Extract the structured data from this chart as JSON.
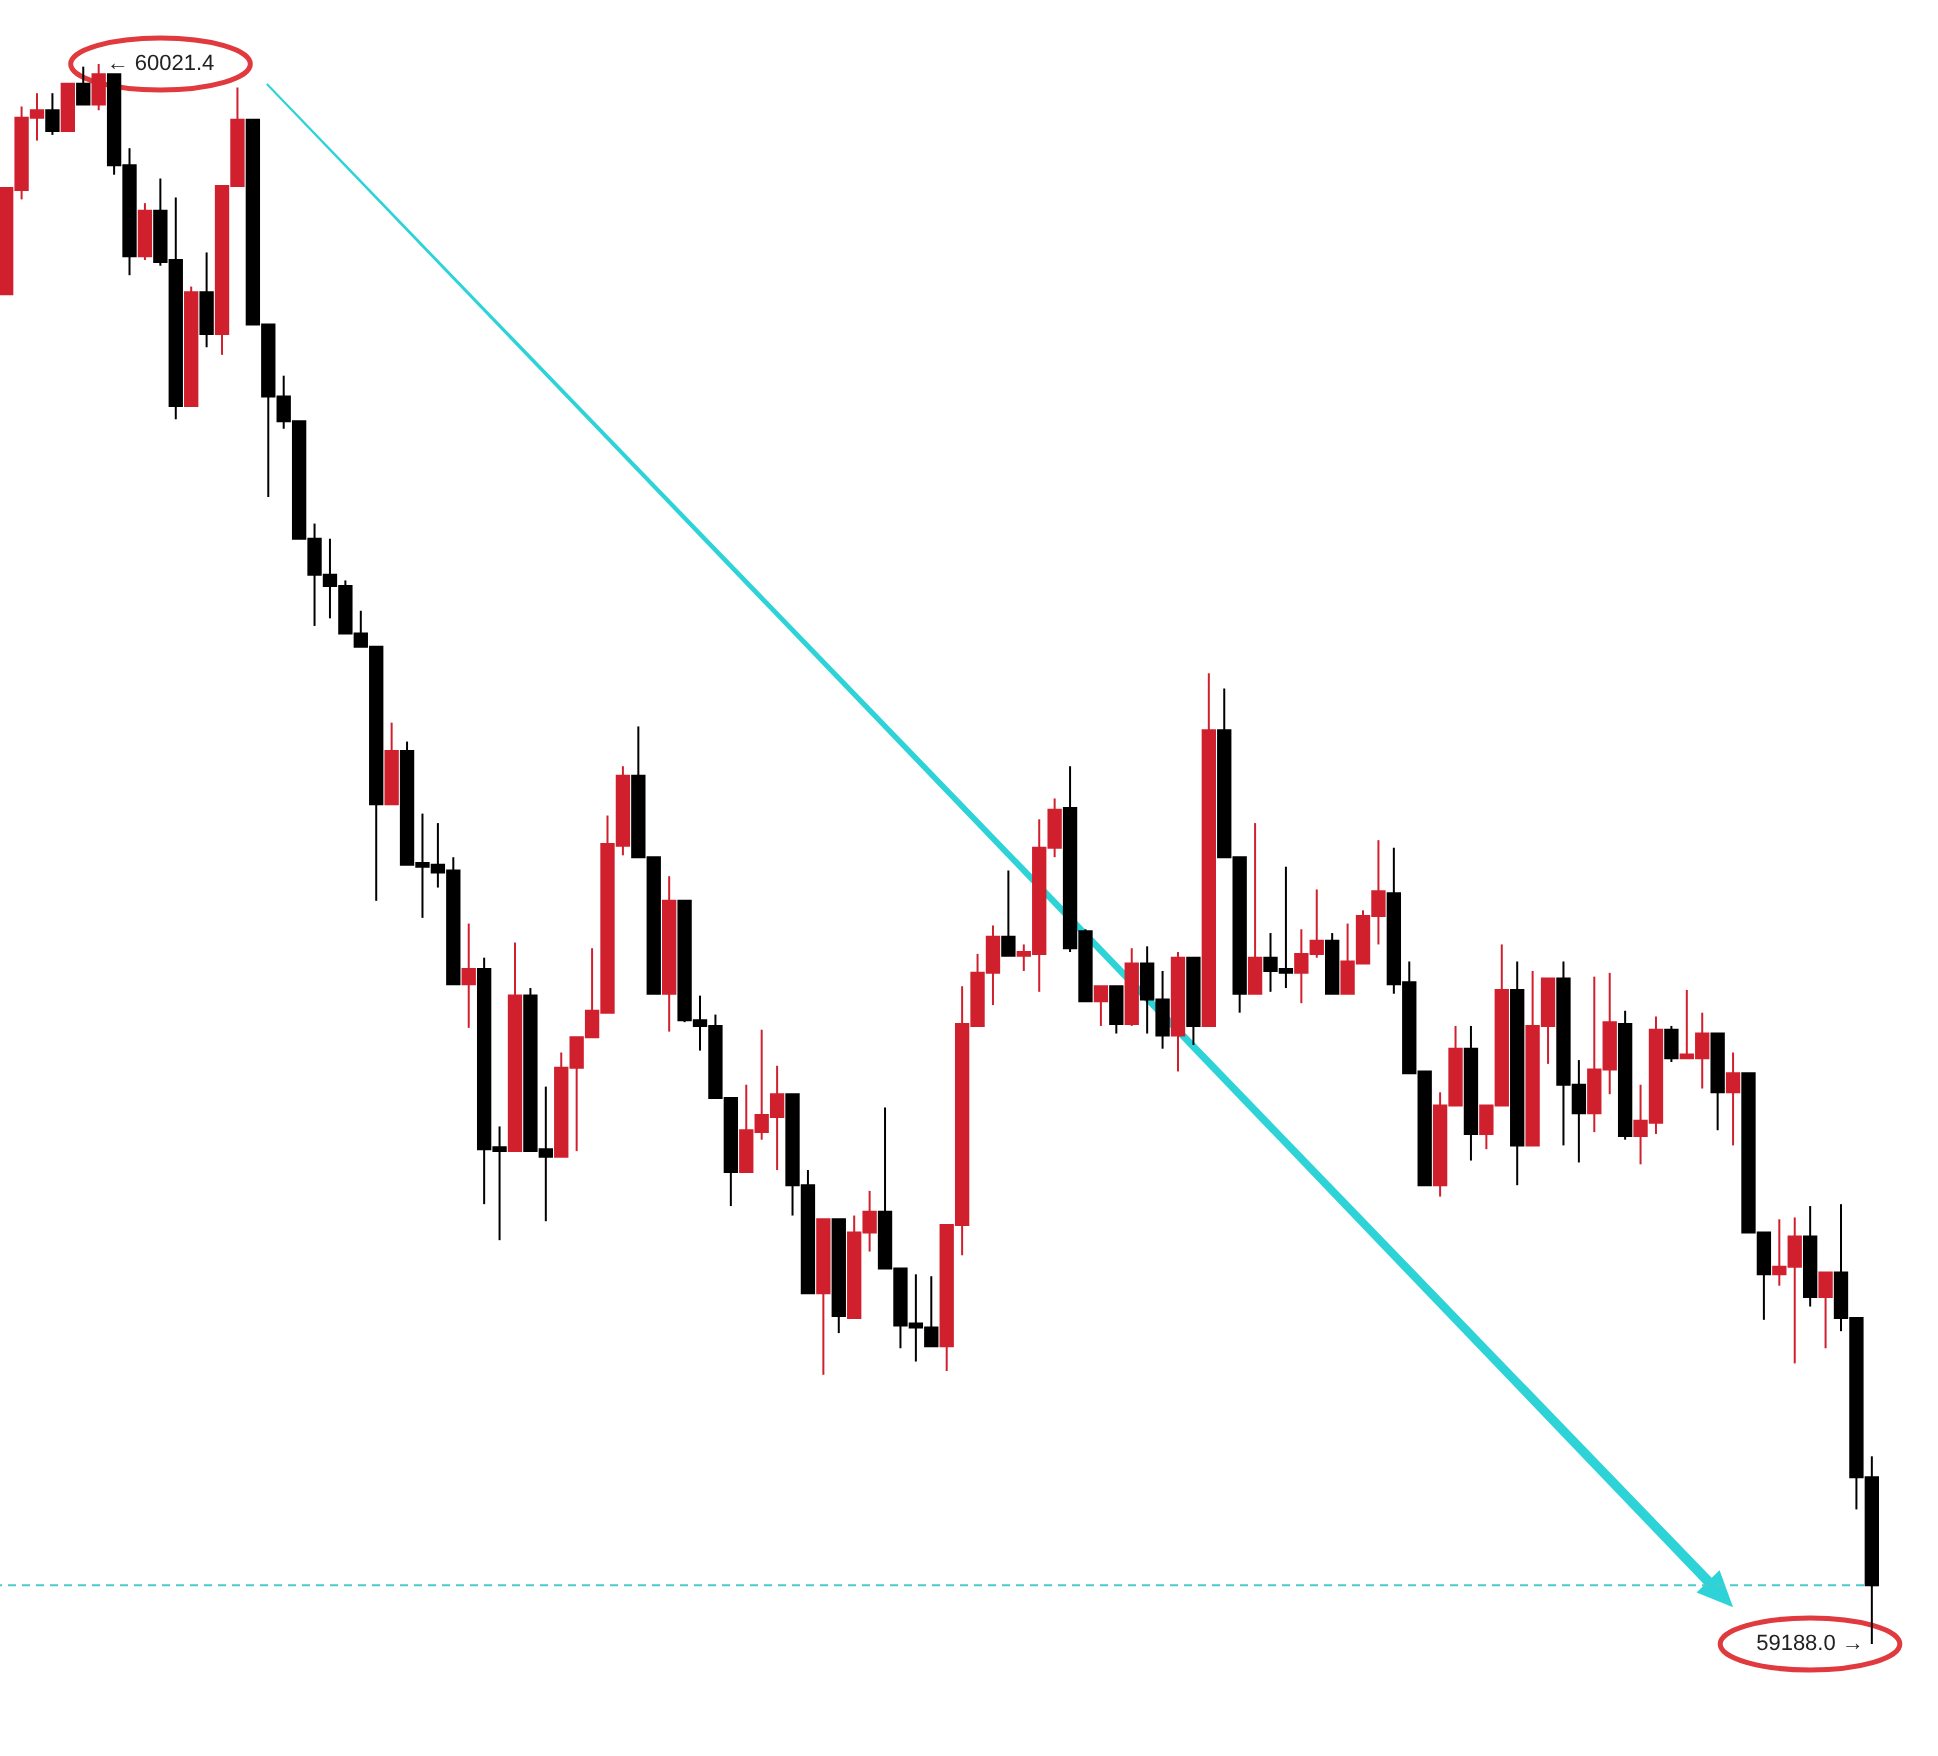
{
  "chart_data": {
    "type": "candlestick",
    "categories": [
      null,
      null,
      null,
      null,
      null,
      null,
      null,
      null,
      null,
      null,
      null,
      null,
      null,
      null,
      null,
      null,
      null,
      null,
      null,
      null,
      null,
      null,
      null,
      null,
      null,
      null,
      null,
      null,
      null,
      null,
      null,
      null,
      null,
      null,
      null,
      null,
      null,
      null,
      null,
      null,
      null,
      null,
      null,
      null,
      null,
      null,
      null,
      null,
      null,
      null,
      null,
      null,
      null,
      null,
      null,
      null,
      null,
      null,
      null,
      null,
      null,
      null,
      null,
      null,
      null,
      null,
      null,
      null,
      null,
      null,
      null,
      null,
      null,
      null,
      null,
      null,
      null,
      null,
      null,
      null,
      null,
      null,
      null,
      null,
      null,
      null,
      null,
      null,
      null,
      null,
      null,
      null,
      null,
      null,
      null,
      null,
      null,
      null,
      null,
      null,
      null,
      null,
      null,
      null,
      null,
      null,
      null,
      null,
      null,
      null,
      null,
      null,
      null,
      null,
      null,
      null,
      null,
      null,
      null,
      null,
      null,
      null
    ],
    "ohlc": [
      [
        59900,
        59956,
        59900,
        59956
      ],
      [
        59955,
        59999,
        59950,
        59993
      ],
      [
        59993,
        60006,
        59981,
        59997
      ],
      [
        59997,
        60006,
        59984,
        59986
      ],
      [
        59986,
        60011,
        59986,
        60011
      ],
      [
        60011,
        60020,
        60000,
        60000
      ],
      [
        60000,
        60021.4,
        59997,
        60016
      ],
      [
        60016,
        60016,
        59963,
        59968
      ],
      [
        59968,
        59977,
        59910,
        59920
      ],
      [
        59920,
        59948,
        59918,
        59944
      ],
      [
        59944,
        59961,
        59915,
        59917
      ],
      [
        59918,
        59951,
        59834,
        59841
      ],
      [
        59841,
        59904,
        59841,
        59901
      ],
      [
        59901,
        59922,
        59872,
        59879
      ],
      [
        59879,
        59957,
        59868,
        59957
      ],
      [
        59957,
        60009,
        59957,
        59992
      ],
      [
        59992,
        59992,
        59884,
        59884
      ],
      [
        59884,
        59884,
        59793,
        59846
      ],
      [
        59846,
        59857,
        59829,
        59833
      ],
      [
        59833,
        59833,
        59771,
        59771
      ],
      [
        59771,
        59779,
        59725,
        59752
      ],
      [
        59752,
        59771,
        59729,
        59746
      ],
      [
        59746,
        59749,
        59721,
        59721
      ],
      [
        59721,
        59733,
        59714,
        59714
      ],
      [
        59714,
        59714,
        59580,
        59631
      ],
      [
        59631,
        59674,
        59631,
        59659
      ],
      [
        59659,
        59664,
        59599,
        59599
      ],
      [
        59600,
        59626,
        59571,
        59598
      ],
      [
        59599,
        59621,
        59587,
        59595
      ],
      [
        59596,
        59603,
        59536,
        59536
      ],
      [
        59536,
        59568,
        59513,
        59544
      ],
      [
        59544,
        59550,
        59420,
        59449
      ],
      [
        59450,
        59461,
        59401,
        59448
      ],
      [
        59448,
        59558,
        59448,
        59530
      ],
      [
        59530,
        59534,
        59448,
        59448
      ],
      [
        59449,
        59482,
        59411,
        59445
      ],
      [
        59445,
        59500,
        59445,
        59492
      ],
      [
        59492,
        59508,
        59448,
        59508
      ],
      [
        59508,
        59555,
        59508,
        59522
      ],
      [
        59521,
        59625,
        59521,
        59610
      ],
      [
        59609,
        59651,
        59604,
        59646
      ],
      [
        59646,
        59672,
        59603,
        59603
      ],
      [
        59603,
        59603,
        59531,
        59531
      ],
      [
        59531,
        59593,
        59511,
        59580
      ],
      [
        59580,
        59580,
        59516,
        59517
      ],
      [
        59517,
        59530,
        59501,
        59514
      ],
      [
        59514,
        59520,
        59476,
        59476
      ],
      [
        59476,
        59476,
        59419,
        59437
      ],
      [
        59437,
        59483,
        59437,
        59459
      ],
      [
        59458,
        59512,
        59454,
        59467
      ],
      [
        59466,
        59493,
        59438,
        59478
      ],
      [
        59478,
        59478,
        59414,
        59430
      ],
      [
        59430,
        59438,
        59373,
        59373
      ],
      [
        59373,
        59412,
        59330,
        59412
      ],
      [
        59412,
        59412,
        59352,
        59361
      ],
      [
        59360,
        59414,
        59360,
        59405
      ],
      [
        59405,
        59427,
        59395,
        59416
      ],
      [
        59416,
        59471,
        59386,
        59386
      ],
      [
        59386,
        59386,
        59344,
        59356
      ],
      [
        59357,
        59383,
        59337,
        59355
      ],
      [
        59355,
        59382,
        59345,
        59345
      ],
      [
        59345,
        59409,
        59332,
        59409
      ],
      [
        59409,
        59535,
        59393,
        59515
      ],
      [
        59514,
        59552,
        59514,
        59542
      ],
      [
        59542,
        59567,
        59525,
        59561
      ],
      [
        59561,
        59596,
        59551,
        59551
      ],
      [
        59551,
        59557,
        59543,
        59553
      ],
      [
        59552,
        59623,
        59532,
        59608
      ],
      [
        59608,
        59634,
        59603,
        59628
      ],
      [
        59629,
        59651,
        59553,
        59555
      ],
      [
        59564,
        59565,
        59527,
        59527
      ],
      [
        59527,
        59535,
        59514,
        59535
      ],
      [
        59535,
        59535,
        59510,
        59515
      ],
      [
        59515,
        59555,
        59514,
        59547
      ],
      [
        59547,
        59556,
        59510,
        59528
      ],
      [
        59528,
        59543,
        59502,
        59509
      ],
      [
        59509,
        59553,
        59490,
        59550
      ],
      [
        59550,
        59550,
        59504,
        59514
      ],
      [
        59514,
        59700,
        59514,
        59670
      ],
      [
        59670,
        59692,
        59603,
        59603
      ],
      [
        59603,
        59603,
        59521,
        59531
      ],
      [
        59531,
        59621,
        59531,
        59550
      ],
      [
        59550,
        59563,
        59532,
        59543
      ],
      [
        59544,
        59598,
        59534,
        59542
      ],
      [
        59542,
        59565,
        59526,
        59552
      ],
      [
        59552,
        59586,
        59550,
        59559
      ],
      [
        59559,
        59563,
        59531,
        59531
      ],
      [
        59531,
        59568,
        59531,
        59548
      ],
      [
        59547,
        59575,
        59547,
        59572
      ],
      [
        59572,
        59612,
        59557,
        59585
      ],
      [
        59584,
        59608,
        59531,
        59536
      ],
      [
        59537,
        59548,
        59489,
        59489
      ],
      [
        59490,
        59490,
        59430,
        59430
      ],
      [
        59430,
        59479,
        59424,
        59472
      ],
      [
        59472,
        59514,
        59472,
        59502
      ],
      [
        59502,
        59514,
        59443,
        59457
      ],
      [
        59457,
        59472,
        59449,
        59472
      ],
      [
        59472,
        59557,
        59472,
        59533
      ],
      [
        59533,
        59548,
        59430,
        59451
      ],
      [
        59451,
        59543,
        59451,
        59514
      ],
      [
        59514,
        59539,
        59494,
        59539
      ],
      [
        59539,
        59548,
        59451,
        59483
      ],
      [
        59483,
        59496,
        59442,
        59468
      ],
      [
        59468,
        59540,
        59458,
        59491
      ],
      [
        59491,
        59542,
        59478,
        59516
      ],
      [
        59515,
        59522,
        59454,
        59456
      ],
      [
        59456,
        59483,
        59441,
        59464
      ],
      [
        59463,
        59519,
        59457,
        59512
      ],
      [
        59512,
        59514,
        59495,
        59497
      ],
      [
        59497,
        59533,
        59497,
        59499
      ],
      [
        59497,
        59521,
        59481,
        59510
      ],
      [
        59510,
        59510,
        59459,
        59479
      ],
      [
        59479,
        59500,
        59451,
        59489
      ],
      [
        59489,
        59489,
        59405,
        59405
      ],
      [
        59405,
        59405,
        59359,
        59383
      ],
      [
        59383,
        59412,
        59377,
        59387
      ],
      [
        59387,
        59413,
        59336,
        59403
      ],
      [
        59403,
        59419,
        59366,
        59371
      ],
      [
        59371,
        59384,
        59344,
        59384
      ],
      [
        59384,
        59420,
        59353,
        59360
      ],
      [
        59360,
        59360,
        59259,
        59276
      ],
      [
        59276,
        59287,
        59188.0,
        59219
      ]
    ],
    "colors": [
      "#d0202e",
      "#d0202e",
      "#d0202e",
      "#000000",
      "#d0202e",
      "#000000",
      "#d0202e",
      "#000000",
      "#000000",
      "#d0202e",
      "#000000",
      "#000000",
      "#d0202e",
      "#000000",
      "#d0202e",
      "#d0202e",
      "#000000",
      "#000000",
      "#000000",
      "#000000",
      "#000000",
      "#000000",
      "#000000",
      "#000000",
      "#000000",
      "#d0202e",
      "#000000",
      "#000000",
      "#000000",
      "#000000",
      "#d0202e",
      "#000000",
      "#000000",
      "#d0202e",
      "#000000",
      "#000000",
      "#d0202e",
      "#d0202e",
      "#d0202e",
      "#d0202e",
      "#d0202e",
      "#000000",
      "#000000",
      "#d0202e",
      "#000000",
      "#000000",
      "#000000",
      "#000000",
      "#d0202e",
      "#d0202e",
      "#d0202e",
      "#000000",
      "#000000",
      "#d0202e",
      "#000000",
      "#d0202e",
      "#d0202e",
      "#000000",
      "#000000",
      "#000000",
      "#000000",
      "#d0202e",
      "#d0202e",
      "#d0202e",
      "#d0202e",
      "#000000",
      "#d0202e",
      "#d0202e",
      "#d0202e",
      "#000000",
      "#000000",
      "#d0202e",
      "#000000",
      "#d0202e",
      "#000000",
      "#000000",
      "#d0202e",
      "#000000",
      "#d0202e",
      "#000000",
      "#000000",
      "#d0202e",
      "#000000",
      "#000000",
      "#d0202e",
      "#d0202e",
      "#000000",
      "#d0202e",
      "#d0202e",
      "#d0202e",
      "#000000",
      "#000000",
      "#000000",
      "#d0202e",
      "#d0202e",
      "#000000",
      "#d0202e",
      "#d0202e",
      "#000000",
      "#d0202e",
      "#d0202e",
      "#000000",
      "#000000",
      "#d0202e",
      "#d0202e",
      "#000000",
      "#d0202e",
      "#d0202e",
      "#000000",
      "#d0202e",
      "#d0202e",
      "#000000",
      "#d0202e",
      "#000000",
      "#000000",
      "#d0202e",
      "#d0202e",
      "#000000",
      "#d0202e",
      "#000000",
      "#000000",
      "#000000"
    ],
    "ref_lines": [
      {
        "axis": "y",
        "value": 59219,
        "color": "#4cc9c9",
        "line_style": "dashed"
      }
    ],
    "annotations": [
      "← 60021.4",
      "59188.0 →"
    ]
  }
}
